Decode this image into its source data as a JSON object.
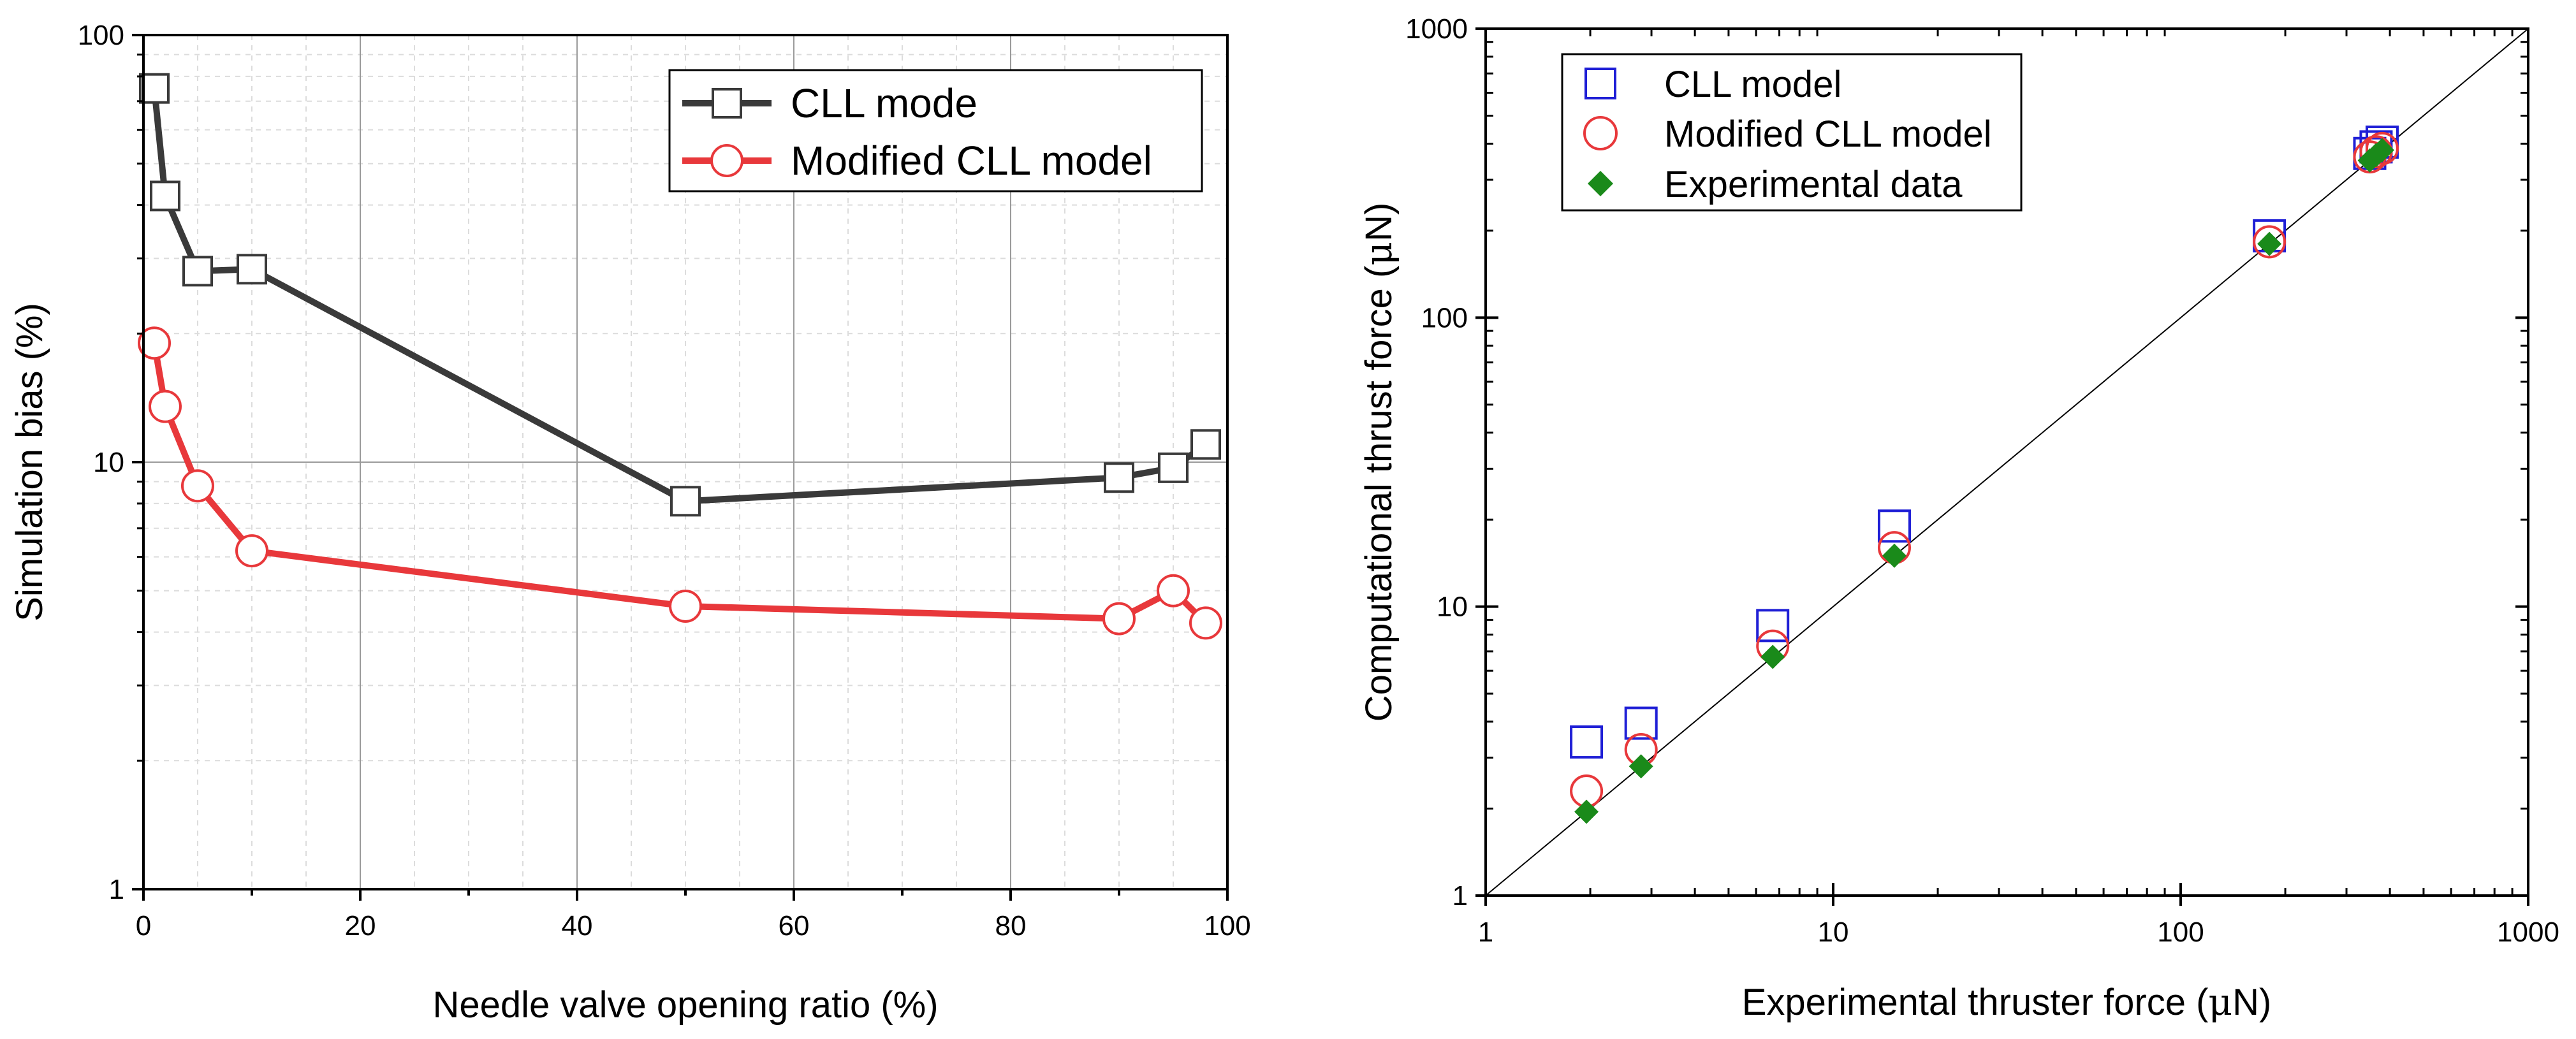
{
  "chart_data": [
    {
      "type": "line",
      "yscale": "log",
      "xlabel": "Needle valve opening ratio (%)",
      "ylabel": "Simulation bias (%)",
      "xlim": [
        0,
        100
      ],
      "ylim": [
        1,
        100
      ],
      "xticks": [
        "0",
        "20",
        "40",
        "60",
        "80",
        "100"
      ],
      "yticks": [
        "1",
        "10",
        "100"
      ],
      "grid": true,
      "legend_position": "top-right",
      "series": [
        {
          "name": "CLL mode",
          "color": "#3a3a3a",
          "marker": "square",
          "x": [
            1,
            2,
            5,
            10,
            50,
            90,
            95,
            98
          ],
          "y": [
            75,
            42,
            28,
            28.3,
            8.1,
            9.2,
            9.7,
            11
          ]
        },
        {
          "name": "Modified CLL model",
          "color": "#e8383b",
          "marker": "circle",
          "x": [
            1,
            2,
            5,
            10,
            50,
            90,
            95,
            98
          ],
          "y": [
            19,
            13.5,
            8.8,
            6.2,
            4.6,
            4.3,
            5.0,
            4.2
          ]
        }
      ]
    },
    {
      "type": "scatter",
      "xscale": "log",
      "yscale": "log",
      "xlabel_main": "Experimental thruster force (",
      "xlabel_unit": "μ",
      "xlabel_end": "N)",
      "ylabel_main": "Computational thrust force (",
      "ylabel_unit": "μ",
      "ylabel_end": "N)",
      "xlim": [
        1,
        1000
      ],
      "ylim": [
        1,
        1000
      ],
      "xticks": [
        "1",
        "10",
        "100",
        "1000"
      ],
      "yticks": [
        "1",
        "10",
        "100",
        "1000"
      ],
      "grid": false,
      "legend_position": "top-left",
      "reference_line": "y = x",
      "series": [
        {
          "name": "CLL model",
          "color": "#1f1fd6",
          "marker": "open-square",
          "x": [
            1.95,
            2.8,
            6.7,
            15,
            180,
            350,
            365,
            380
          ],
          "y": [
            3.4,
            3.95,
            8.6,
            19,
            192,
            370,
            390,
            405
          ]
        },
        {
          "name": "Modified CLL model",
          "color": "#e8383b",
          "marker": "open-circle",
          "x": [
            1.95,
            2.8,
            6.7,
            15,
            180,
            350,
            365,
            380
          ],
          "y": [
            2.3,
            3.2,
            7.3,
            16,
            183,
            360,
            375,
            385
          ]
        },
        {
          "name": "Experimental data",
          "color": "#1a8a1a",
          "marker": "filled-diamond",
          "x": [
            1.95,
            2.8,
            6.7,
            15,
            180,
            350,
            365,
            380
          ],
          "y": [
            1.95,
            2.8,
            6.7,
            15,
            180,
            350,
            365,
            380
          ]
        }
      ]
    }
  ]
}
